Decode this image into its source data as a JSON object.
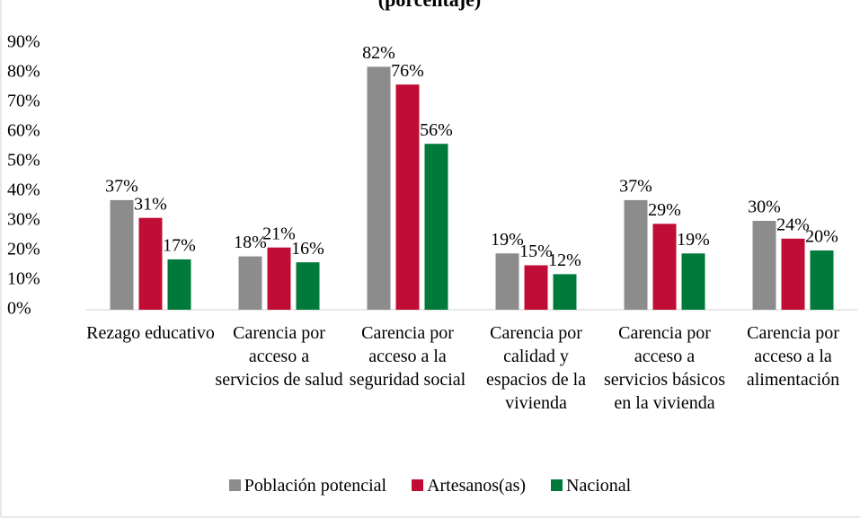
{
  "chart_data": {
    "type": "bar",
    "title": "(porcentaje)",
    "categories": [
      "Rezago educativo",
      "Carencia por acceso a servicios de salud",
      "Carencia por acceso a la seguridad social",
      "Carencia por calidad y espacios de la vivienda",
      "Carencia por acceso a servicios básicos en la vivienda",
      "Carencia por acceso a la alimentación"
    ],
    "series": [
      {
        "name": "Población potencial",
        "color": "#8c8c8c",
        "values": [
          37,
          18,
          82,
          19,
          37,
          30
        ],
        "value_labels": [
          "37%",
          "18%",
          "82%",
          "19%",
          "37%",
          "30%"
        ]
      },
      {
        "name": "Artesanos(as)",
        "color": "#c00d35",
        "values": [
          31,
          21,
          76,
          15,
          29,
          24
        ],
        "value_labels": [
          "31%",
          "21%",
          "76%",
          "15%",
          "29%",
          "24%"
        ]
      },
      {
        "name": "Nacional",
        "color": "#007a3a",
        "values": [
          17,
          16,
          56,
          12,
          19,
          20
        ],
        "value_labels": [
          "17%",
          "16%",
          "56%",
          "12%",
          "19%",
          "20%"
        ]
      }
    ],
    "ylim": [
      0,
      90
    ],
    "yticks": [
      {
        "value": 0,
        "label": "0%"
      },
      {
        "value": 10,
        "label": "10%"
      },
      {
        "value": 20,
        "label": "20%"
      },
      {
        "value": 30,
        "label": "30%"
      },
      {
        "value": 40,
        "label": "40%"
      },
      {
        "value": 50,
        "label": "50%"
      },
      {
        "value": 60,
        "label": "60%"
      },
      {
        "value": 70,
        "label": "70%"
      },
      {
        "value": 80,
        "label": "80%"
      },
      {
        "value": 90,
        "label": "90%"
      }
    ],
    "grid": false,
    "legend": "bottom"
  }
}
